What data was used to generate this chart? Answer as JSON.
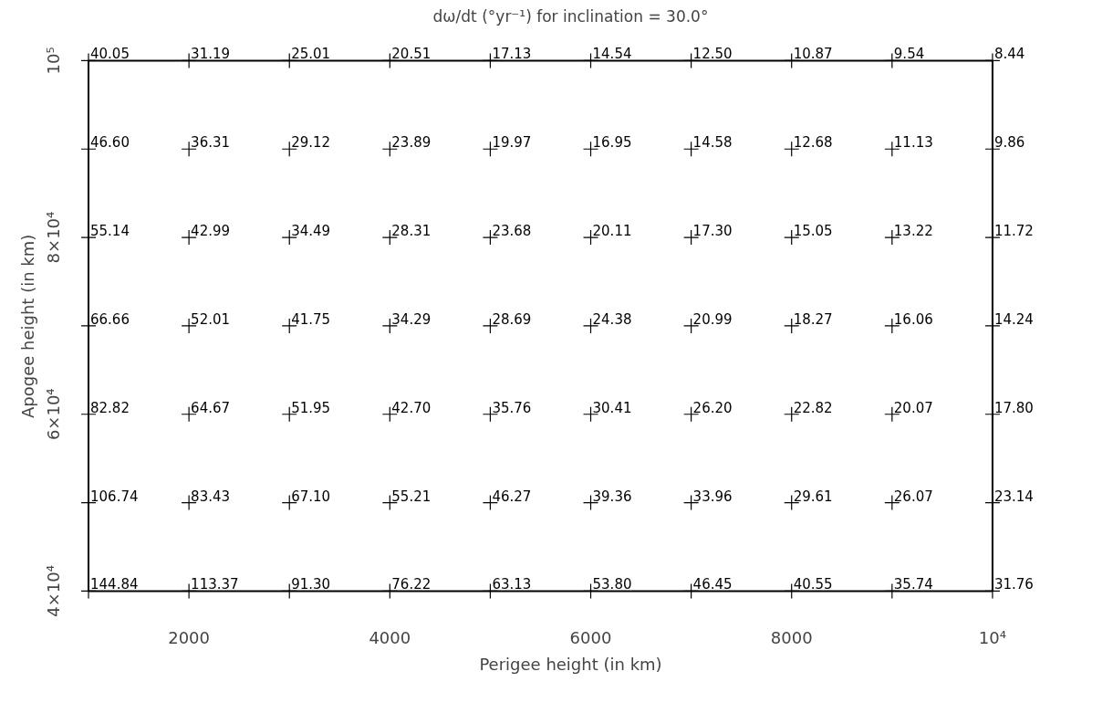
{
  "chart_data": {
    "type": "heatmap",
    "title": "dω/dt (°yr⁻¹) for inclination = 30.0°",
    "xlabel": "Perigee height (in km)",
    "ylabel": "Apogee  height (in km)",
    "data_labels": true,
    "categories": [
      null,
      "2000",
      null,
      "4000",
      null,
      "6000",
      null,
      "8000",
      null,
      "10⁴"
    ],
    "y_categories": [
      "10⁵",
      null,
      "8×10⁴",
      null,
      "6×10⁴",
      null,
      "4×10⁴"
    ],
    "cells": [
      [
        40.05,
        31.19,
        25.01,
        20.51,
        17.13,
        14.54,
        12.5,
        10.87,
        9.54,
        8.44
      ],
      [
        46.6,
        36.31,
        29.12,
        23.89,
        19.97,
        16.95,
        14.58,
        12.68,
        11.13,
        9.86
      ],
      [
        55.14,
        42.99,
        34.49,
        28.31,
        23.68,
        20.11,
        17.3,
        15.05,
        13.22,
        11.72
      ],
      [
        66.66,
        52.01,
        41.75,
        34.29,
        28.69,
        24.38,
        20.99,
        18.27,
        16.06,
        14.24
      ],
      [
        82.82,
        64.67,
        51.95,
        42.7,
        35.76,
        30.41,
        26.2,
        22.82,
        20.07,
        17.8
      ],
      [
        106.74,
        83.43,
        67.1,
        55.21,
        46.27,
        39.36,
        33.96,
        29.61,
        26.07,
        23.14
      ],
      [
        144.84,
        113.37,
        91.3,
        76.22,
        63.13,
        53.8,
        46.45,
        40.55,
        35.74,
        31.76
      ]
    ],
    "cell_labels": [
      [
        "40.05",
        "31.19",
        "25.01",
        "20.51",
        "17.13",
        "14.54",
        "12.50",
        "10.87",
        "9.54",
        "8.44"
      ],
      [
        "46.60",
        "36.31",
        "29.12",
        "23.89",
        "19.97",
        "16.95",
        "14.58",
        "12.68",
        "11.13",
        "9.86"
      ],
      [
        "55.14",
        "42.99",
        "34.49",
        "28.31",
        "23.68",
        "20.11",
        "17.30",
        "15.05",
        "13.22",
        "11.72"
      ],
      [
        "66.66",
        "52.01",
        "41.75",
        "34.29",
        "28.69",
        "24.38",
        "20.99",
        "18.27",
        "16.06",
        "14.24"
      ],
      [
        "82.82",
        "64.67",
        "51.95",
        "42.70",
        "35.76",
        "30.41",
        "26.20",
        "22.82",
        "20.07",
        "17.80"
      ],
      [
        "106.74",
        "83.43",
        "67.10",
        "55.21",
        "46.27",
        "39.36",
        "33.96",
        "29.61",
        "26.07",
        "23.14"
      ],
      [
        "144.84",
        "113.37",
        "91.30",
        "76.22",
        "63.13",
        "53.80",
        "46.45",
        "40.55",
        "35.74",
        "31.76"
      ]
    ]
  }
}
